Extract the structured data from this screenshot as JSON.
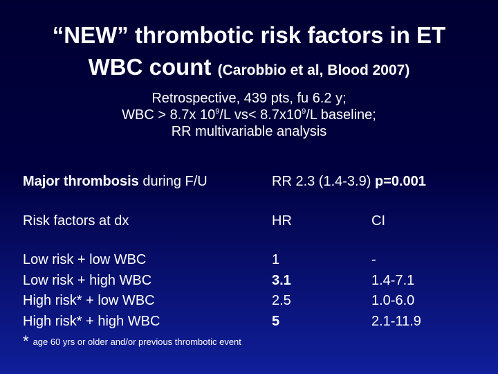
{
  "title": {
    "line1": "“NEW” thrombotic risk factors in ET",
    "line2": "WBC count ",
    "citation": "(Carobbio et al, Blood 2007)"
  },
  "subtitle": {
    "line1": "Retrospective, 439 pts, fu 6.2 y;",
    "line2_a": "WBC > 8.7x 10",
    "line2_sup1": "9",
    "line2_b": "/L vs< 8.7x10",
    "line2_sup2": "9",
    "line2_c": "/L baseline;",
    "line3": "RR multivariable analysis"
  },
  "major": {
    "label_bold": "Major thrombosis",
    "label_rest": " during F/U",
    "rr_text": "RR  2.3 (1.4-3.9) ",
    "p_value": "p=0.001"
  },
  "table": {
    "header": {
      "label": "Risk factors at dx",
      "hr": "HR",
      "ci": "CI"
    },
    "rows": [
      {
        "label": "Low risk + low WBC",
        "hr": "1",
        "ci": "-"
      },
      {
        "label": "Low risk + high WBC",
        "hr": "3.1",
        "ci": "1.4-7.1"
      },
      {
        "label": "High risk* + low WBC",
        "hr": "2.5",
        "ci": "1.0-6.0"
      },
      {
        "label": "High risk* + high WBC",
        "hr": "5",
        "ci": "2.1-11.9"
      }
    ]
  },
  "footnote": {
    "star": "*",
    "text": "age 60 yrs or older and/or previous thrombotic event"
  }
}
